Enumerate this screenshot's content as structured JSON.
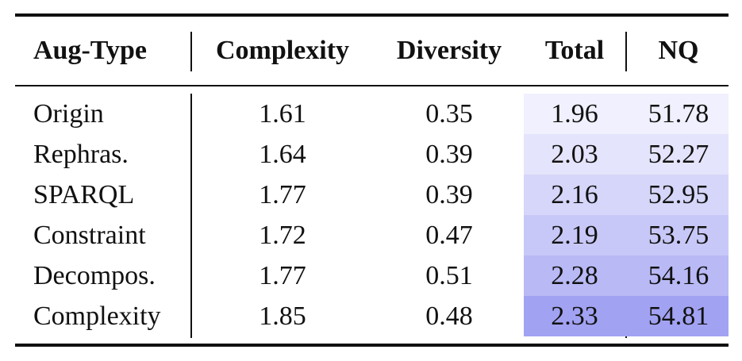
{
  "table": {
    "headers": {
      "aug_type": "Aug-Type",
      "complexity": "Complexity",
      "diversity": "Diversity",
      "total": "Total",
      "nq": "NQ"
    },
    "rows": [
      {
        "aug_type": "Origin",
        "complexity": "1.61",
        "diversity": "0.35",
        "total": "1.96",
        "nq": "51.78"
      },
      {
        "aug_type": "Rephras.",
        "complexity": "1.64",
        "diversity": "0.39",
        "total": "2.03",
        "nq": "52.27"
      },
      {
        "aug_type": "SPARQL",
        "complexity": "1.77",
        "diversity": "0.39",
        "total": "2.16",
        "nq": "52.95"
      },
      {
        "aug_type": "Constraint",
        "complexity": "1.72",
        "diversity": "0.47",
        "total": "2.19",
        "nq": "53.75"
      },
      {
        "aug_type": "Decompos.",
        "complexity": "1.77",
        "diversity": "0.51",
        "total": "2.28",
        "nq": "54.16"
      },
      {
        "aug_type": "Complexity",
        "complexity": "1.85",
        "diversity": "0.48",
        "total": "2.33",
        "nq": "54.81"
      }
    ],
    "shade_colors": [
      "#f0f0fe",
      "#e4e4fc",
      "#d6d6fa",
      "#c8c8f8",
      "#b9b9f6",
      "#a2a2f3"
    ]
  }
}
